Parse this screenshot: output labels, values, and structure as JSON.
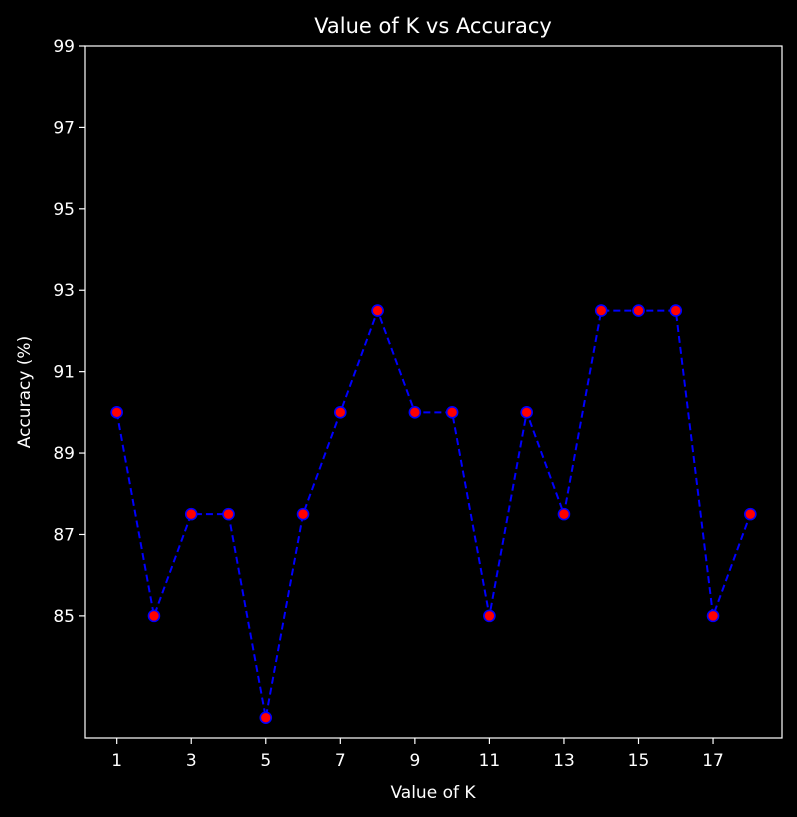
{
  "chart_data": {
    "type": "line",
    "title": "Value of K vs Accuracy",
    "xlabel": "Value of K",
    "ylabel": "Accuracy (%)",
    "x": [
      1,
      2,
      3,
      4,
      5,
      6,
      7,
      8,
      9,
      10,
      11,
      12,
      13,
      14,
      15,
      16,
      17,
      18
    ],
    "series": [
      {
        "values": [
          90,
          85,
          87.5,
          87.5,
          82.5,
          87.5,
          90,
          92.5,
          90,
          90,
          85,
          90,
          87.5,
          92.5,
          92.5,
          92.5,
          85,
          87.5
        ]
      }
    ],
    "xticks": [
      1,
      3,
      5,
      7,
      9,
      11,
      13,
      15,
      17
    ],
    "yticks": [
      85,
      87,
      89,
      91,
      93,
      95,
      97,
      99
    ],
    "xlim": [
      0.15,
      18.85
    ],
    "ylim": [
      82,
      99
    ],
    "grid": false,
    "line_style": "dashed",
    "colors": {
      "background": "#000000",
      "axes": "#ffffff",
      "text": "#ffffff",
      "line": "#0000ff",
      "marker_face": "#ff0000",
      "marker_edge": "#0000ff"
    }
  }
}
